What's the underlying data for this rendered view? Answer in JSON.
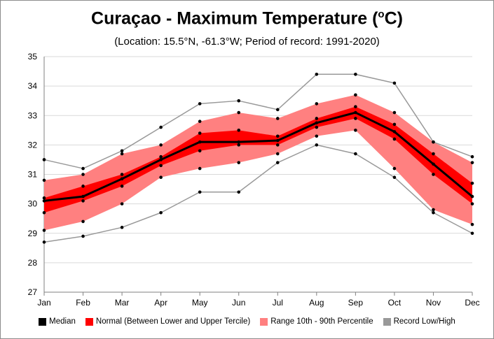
{
  "title": {
    "main": "Curaçao - Maximum Temperature (",
    "sup": "o",
    "unit": "C)"
  },
  "subtitle": "(Location: 15.5°N, -61.3°W; Period of record: 1991-2020)",
  "colors": {
    "median": "#000000",
    "normal": "#ff0000",
    "range": "#ff8080",
    "record": "#999999",
    "grid": "#d9d9d9"
  },
  "chart_data": {
    "type": "area",
    "categories": [
      "Jan",
      "Feb",
      "Mar",
      "Apr",
      "May",
      "Jun",
      "Jul",
      "Aug",
      "Sep",
      "Oct",
      "Nov",
      "Dec"
    ],
    "ylim": [
      27,
      35
    ],
    "yticks": [
      27,
      28,
      29,
      30,
      31,
      32,
      33,
      34,
      35
    ],
    "grid": true,
    "legend_position": "bottom",
    "series": [
      {
        "name": "Record Low/High",
        "role": "record_high",
        "values": [
          31.5,
          31.2,
          31.8,
          32.6,
          33.4,
          33.5,
          33.2,
          34.4,
          34.4,
          34.1,
          32.1,
          31.6
        ]
      },
      {
        "name": "Range 10th - 90th Percentile",
        "role": "p90",
        "values": [
          30.8,
          31.0,
          31.7,
          32.0,
          32.8,
          33.1,
          32.9,
          33.4,
          33.7,
          33.1,
          32.1,
          31.4
        ]
      },
      {
        "name": "Normal (Between Lower and Upper Tercile)",
        "role": "upper_tercile",
        "values": [
          30.2,
          30.6,
          31.0,
          31.6,
          32.4,
          32.5,
          32.3,
          32.9,
          33.3,
          32.7,
          31.7,
          30.7
        ]
      },
      {
        "name": "Median",
        "role": "median",
        "values": [
          30.1,
          30.25,
          30.85,
          31.5,
          32.1,
          32.1,
          32.15,
          32.75,
          33.1,
          32.45,
          31.35,
          30.25
        ]
      },
      {
        "name": "Normal (Between Lower and Upper Tercile)",
        "role": "lower_tercile",
        "values": [
          29.7,
          30.1,
          30.6,
          31.3,
          31.8,
          32.0,
          32.0,
          32.6,
          32.9,
          32.2,
          31.0,
          30.0
        ]
      },
      {
        "name": "Range 10th - 90th Percentile",
        "role": "p10",
        "values": [
          29.1,
          29.4,
          30.0,
          30.9,
          31.2,
          31.4,
          31.7,
          32.3,
          32.5,
          31.2,
          29.8,
          29.3
        ]
      },
      {
        "name": "Record Low/High",
        "role": "record_low",
        "values": [
          28.7,
          28.9,
          29.2,
          29.7,
          30.4,
          30.4,
          31.4,
          32.0,
          31.7,
          30.9,
          29.7,
          29.0
        ]
      }
    ]
  },
  "legend": [
    {
      "label": "Median",
      "color_key": "median"
    },
    {
      "label": "Normal (Between Lower and Upper Tercile)",
      "color_key": "normal"
    },
    {
      "label": "Range 10th - 90th Percentile",
      "color_key": "range"
    },
    {
      "label": "Record Low/High",
      "color_key": "record"
    }
  ]
}
